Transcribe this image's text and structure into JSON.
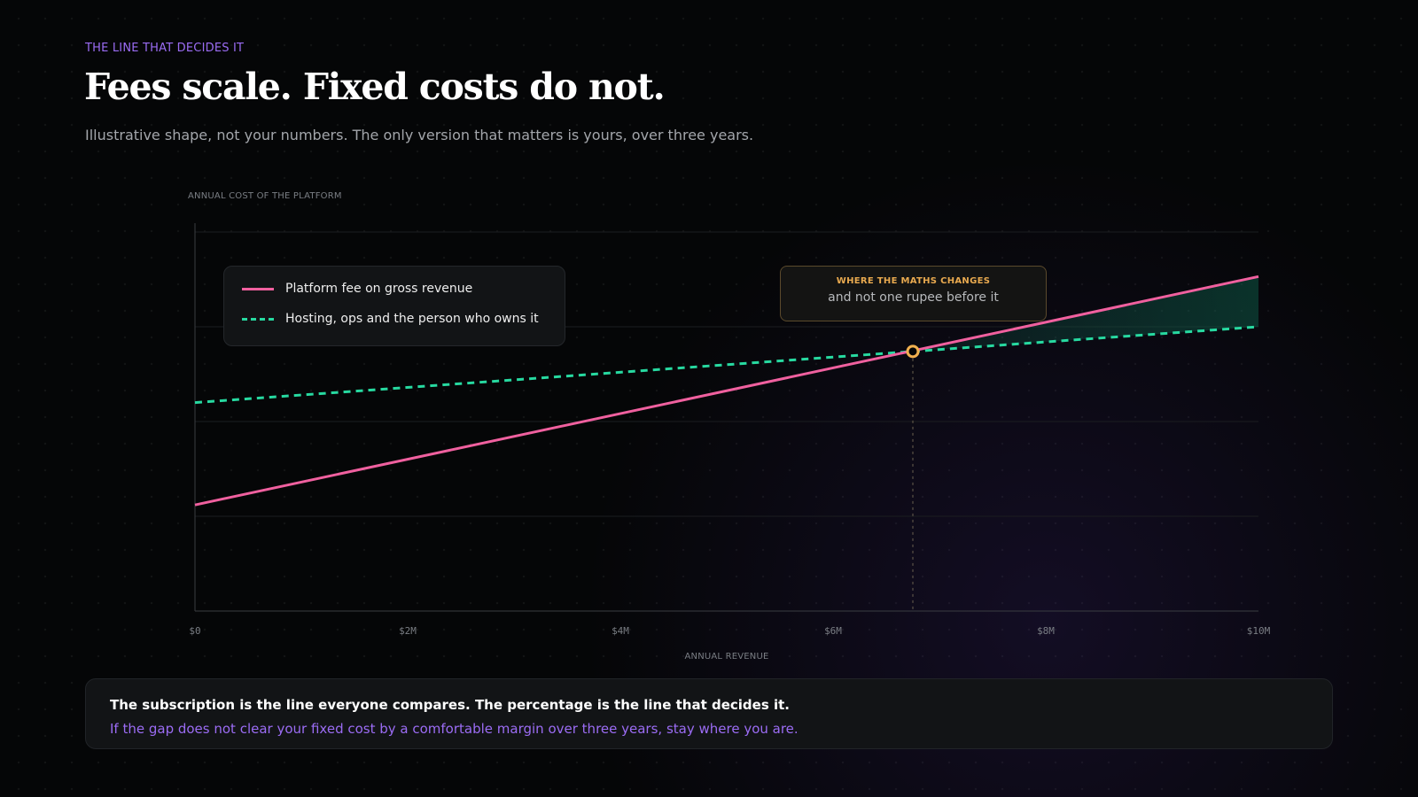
{
  "header": {
    "eyebrow": "THE LINE THAT DECIDES IT",
    "title": "Fees scale. Fixed costs do not.",
    "subtitle": "Illustrative shape, not your numbers. The only version that matters is yours, over three years."
  },
  "annotation": {
    "heading": "WHERE THE MATHS CHANGES",
    "body": "and not one rupee before it"
  },
  "callout": {
    "line1": "The subscription is the line everyone compares. The percentage is the line that decides it.",
    "line2": "If the gap does not clear your fixed cost by a comfortable margin over three years, stay where you are."
  },
  "colors": {
    "fee_line": "#f0609f",
    "fixed_line": "#27d9a0",
    "crossover_marker": "#f2b04f",
    "accent": "#9b6cf4"
  },
  "chart_data": {
    "type": "line",
    "title": "",
    "xlabel": "ANNUAL REVENUE",
    "ylabel": "ANNUAL COST OF THE PLATFORM",
    "x_unit": "$M",
    "xlim": [
      0,
      10
    ],
    "ylim": [
      0,
      4
    ],
    "x_ticks": [
      0,
      2,
      4,
      6,
      8,
      10
    ],
    "x_tick_labels": [
      "$0",
      "$2M",
      "$4M",
      "$6M",
      "$8M",
      "$10M"
    ],
    "y_tick_labels_shown": false,
    "grid": "horizontal",
    "legend_placement": "top-left",
    "series": [
      {
        "name": "Platform fee on gross revenue",
        "style": "solid",
        "x": [
          0,
          10
        ],
        "y": [
          1.12,
          3.53
        ]
      },
      {
        "name": "Hosting, ops and the person who owns it",
        "style": "dashed",
        "x": [
          0,
          10
        ],
        "y": [
          2.2,
          3.0
        ]
      }
    ],
    "crossover": {
      "x": 6.75,
      "y": 2.74
    },
    "shaded_region": "gap between fee line and fixed-cost line right of the crossover"
  }
}
